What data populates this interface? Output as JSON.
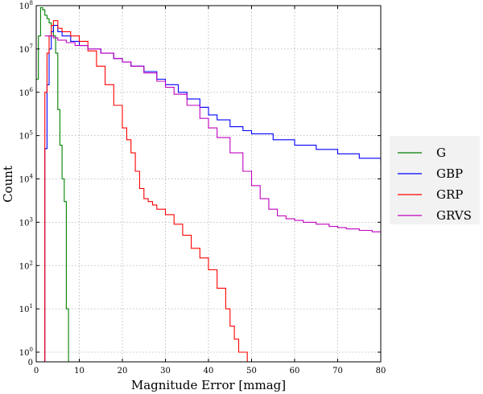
{
  "chart_data": {
    "type": "line",
    "drawstyle": "steps",
    "title": "",
    "xlabel": "Magnitude Error [mmag]",
    "ylabel": "Count",
    "xlim": [
      0,
      80
    ],
    "yscale": "symlog",
    "ylim": [
      0,
      100000000
    ],
    "grid": true,
    "legend_position": "right",
    "x_ticks": [
      0,
      10,
      20,
      30,
      40,
      50,
      60,
      70,
      80
    ],
    "x_tick_labels": [
      "0",
      "10",
      "20",
      "30",
      "40",
      "50",
      "60",
      "70",
      "80"
    ],
    "y_ticks": [
      0,
      1,
      10,
      100,
      1000,
      10000,
      100000,
      1000000,
      10000000,
      100000000
    ],
    "y_tick_labels": [
      {
        "base": "0",
        "exp": ""
      },
      {
        "base": "10",
        "exp": "0"
      },
      {
        "base": "10",
        "exp": "1"
      },
      {
        "base": "10",
        "exp": "2"
      },
      {
        "base": "10",
        "exp": "3"
      },
      {
        "base": "10",
        "exp": "4"
      },
      {
        "base": "10",
        "exp": "5"
      },
      {
        "base": "10",
        "exp": "6"
      },
      {
        "base": "10",
        "exp": "7"
      },
      {
        "base": "10",
        "exp": "8"
      }
    ],
    "series": [
      {
        "name": "G",
        "color": "#008000",
        "x": [
          0.0,
          0.5,
          1.0,
          1.5,
          2.0,
          2.5,
          3.0,
          3.5,
          4.0,
          4.5,
          5.0,
          5.5,
          6.0,
          6.5,
          7.0,
          7.5,
          8.0,
          8.5,
          80
        ],
        "y": [
          2000000,
          20000000,
          90000000,
          80000000,
          60000000,
          50000000,
          40000000,
          35000000,
          20000000,
          8000000,
          400000,
          60000,
          10000,
          3000,
          10,
          0,
          0,
          0,
          0
        ]
      },
      {
        "name": "GBP",
        "color": "#0000ff",
        "x": [
          0.0,
          1.5,
          2.0,
          2.5,
          3.0,
          3.5,
          4.0,
          5.0,
          6.0,
          8.0,
          10,
          12,
          15,
          18,
          20,
          22,
          25,
          28,
          30,
          33,
          35,
          38,
          40,
          42,
          45,
          48,
          50,
          55,
          60,
          65,
          70,
          75,
          80
        ],
        "y": [
          0,
          0,
          50000,
          1500000,
          10000000,
          25000000,
          35000000,
          25000000,
          20000000,
          15000000,
          12000000,
          10000000,
          8000000,
          6000000,
          5000000,
          4000000,
          3000000,
          2000000,
          1500000,
          1000000,
          700000,
          450000,
          300000,
          230000,
          160000,
          130000,
          110000,
          80000,
          60000,
          48000,
          38000,
          30000,
          24000
        ]
      },
      {
        "name": "GRP",
        "color": "#ff0000",
        "x": [
          0.0,
          1.5,
          2.0,
          2.5,
          3.0,
          3.5,
          4.0,
          5.0,
          6.0,
          8.0,
          10,
          12,
          14,
          16,
          18,
          20,
          21,
          22,
          23,
          24,
          25,
          26,
          27,
          28,
          30,
          32,
          34,
          36,
          38,
          40,
          42,
          44,
          45,
          46,
          47,
          48,
          49,
          50
        ],
        "y": [
          0,
          0,
          1000000,
          8000000,
          20000000,
          35000000,
          45000000,
          30000000,
          25000000,
          20000000,
          15000000,
          9000000,
          4000000,
          1500000,
          500000,
          150000,
          80000,
          40000,
          15000,
          6000,
          3500,
          3000,
          2500,
          2000,
          1500,
          900,
          500,
          250,
          150,
          80,
          30,
          10,
          4,
          2,
          1,
          1,
          0,
          0
        ]
      },
      {
        "name": "GRVS",
        "color": "#bf00bf",
        "x": [
          2.0,
          3.0,
          4.0,
          5.0,
          7.0,
          9.0,
          12,
          15,
          18,
          20,
          22,
          25,
          28,
          30,
          32,
          35,
          38,
          40,
          42,
          45,
          48,
          50,
          52,
          54,
          56,
          58,
          60,
          62,
          65,
          68,
          70,
          72,
          75,
          78,
          80
        ],
        "y": [
          20000000,
          20000000,
          18000000,
          16000000,
          14000000,
          12000000,
          10000000,
          8000000,
          6000000,
          5000000,
          4000000,
          2800000,
          1800000,
          1300000,
          900000,
          500000,
          250000,
          150000,
          90000,
          40000,
          15000,
          7000,
          3500,
          2000,
          1400,
          1200,
          1100,
          1000,
          900,
          800,
          750,
          700,
          650,
          600,
          580
        ]
      }
    ]
  }
}
